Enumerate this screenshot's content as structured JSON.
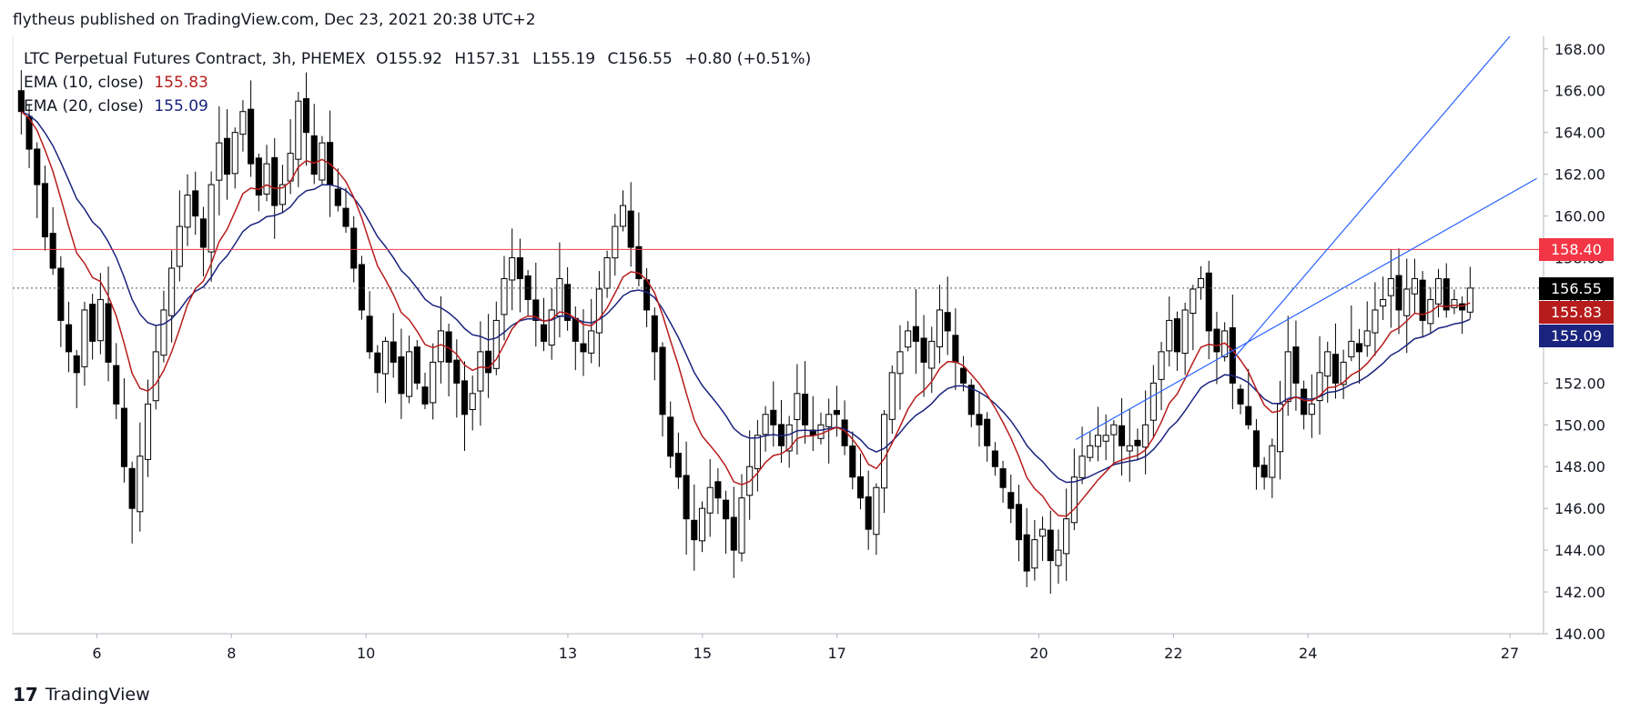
{
  "publisher": "flytheus published on TradingView.com, Dec 23, 2021 20:38 UTC+2",
  "footer": {
    "brand": "TradingView",
    "logo": "17"
  },
  "legend": {
    "symbol": "LTC Perpetual Futures Contract, 3h, PHEMEX",
    "o": "O155.92",
    "h": "H157.31",
    "l": "L155.19",
    "c": "C156.55",
    "chg": "+0.80 (+0.51%)",
    "ema10_label": "EMA (10, close)",
    "ema10_value": "155.83",
    "ema20_label": "EMA (20, close)",
    "ema20_value": "155.09"
  },
  "tags": {
    "resistance": "158.40",
    "last": "156.55",
    "ema10": "155.83",
    "ema20": "155.09"
  },
  "colors": {
    "up": "#ffffff",
    "down": "#000000",
    "wick": "#000000",
    "ema10": "#b71c1c",
    "ema20": "#1a237e",
    "trend": "#2962ff",
    "resistance": "#f23645",
    "last_bg": "#000000",
    "ema10_bg": "#b71c1c",
    "ema20_bg": "#1a237e"
  },
  "chart_data": {
    "type": "candlestick",
    "title": "LTC Perpetual Futures Contract, 3h, PHEMEX",
    "ylim": [
      140,
      168.6
    ],
    "yticks": [
      140,
      142,
      144,
      146,
      148,
      150,
      152,
      154,
      156,
      158,
      160,
      162,
      164,
      166,
      168
    ],
    "ytick_labels": [
      "140.00",
      "142.00",
      "144.00",
      "146.00",
      "148.00",
      "150.00",
      "152.00",
      "154.00",
      "156.00",
      "158.00",
      "160.00",
      "162.00",
      "164.00",
      "166.00",
      "168.00"
    ],
    "xlim": [
      4.75,
      27.5
    ],
    "xticks": [
      6,
      8,
      10,
      13,
      15,
      17,
      20,
      22,
      24,
      27
    ],
    "xtick_labels": [
      "6",
      "8",
      "10",
      "13",
      "15",
      "17",
      "20",
      "22",
      "24",
      "27"
    ],
    "xtick_pos": [
      6,
      8,
      10,
      13,
      15,
      17,
      20,
      22,
      24,
      27
    ],
    "resistance": 158.4,
    "last_price": 156.55,
    "closes": [
      165.0,
      163.2,
      161.5,
      159.0,
      157.5,
      155.0,
      153.5,
      152.5,
      155.5,
      154.0,
      156.0,
      153.0,
      151.0,
      148.0,
      146.0,
      148.5,
      151.0,
      153.5,
      155.5,
      157.5,
      159.5,
      161.0,
      160.0,
      158.5,
      161.5,
      163.5,
      162.0,
      164.0,
      165.0,
      162.5,
      161.0,
      162.5,
      160.5,
      161.5,
      163.0,
      165.5,
      164.0,
      162.0,
      163.5,
      161.5,
      160.5,
      159.5,
      157.5,
      155.5,
      153.5,
      152.5,
      154.0,
      153.0,
      151.5,
      153.5,
      152.0,
      151.0,
      153.0,
      154.5,
      153.0,
      152.0,
      150.5,
      151.5,
      153.5,
      152.5,
      155.0,
      157.0,
      158.0,
      157.0,
      156.0,
      155.0,
      154.0,
      155.5,
      157.0,
      155.0,
      154.0,
      153.5,
      154.5,
      156.5,
      158.0,
      159.5,
      160.5,
      158.5,
      157.0,
      155.5,
      153.5,
      150.5,
      148.5,
      147.5,
      145.5,
      144.5,
      146.0,
      147.0,
      146.5,
      145.5,
      144.0,
      146.5,
      148.0,
      149.5,
      150.5,
      150.0,
      149.0,
      150.0,
      151.5,
      150.0,
      149.5,
      150.0,
      150.5,
      150.5,
      149.0,
      147.5,
      146.5,
      145.0,
      147.0,
      150.5,
      152.5,
      153.5,
      154.5,
      154.0,
      153.0,
      154.0,
      155.5,
      154.5,
      153.0,
      152.0,
      150.5,
      150.0,
      149.0,
      148.0,
      147.0,
      146.0,
      144.5,
      143.0,
      144.5,
      145.0,
      143.5,
      144.0,
      145.5,
      147.5,
      148.5,
      149.0,
      149.5,
      149.5,
      150.0,
      149.0,
      149.0,
      149.0,
      150.0,
      152.0,
      153.5,
      155.0,
      153.5,
      155.5,
      156.5,
      157.0,
      154.5,
      153.5,
      154.5,
      152.0,
      151.0,
      150.0,
      148.0,
      147.5,
      149.0,
      151.0,
      153.5,
      152.0,
      150.5,
      151.0,
      152.5,
      153.5,
      152.0,
      153.0,
      154.0,
      153.5,
      154.5,
      155.5,
      156.0,
      157.0,
      155.5,
      156.5,
      157.0,
      155.0,
      156.0,
      157.0,
      155.5,
      156.0,
      155.5,
      156.55
    ]
  }
}
